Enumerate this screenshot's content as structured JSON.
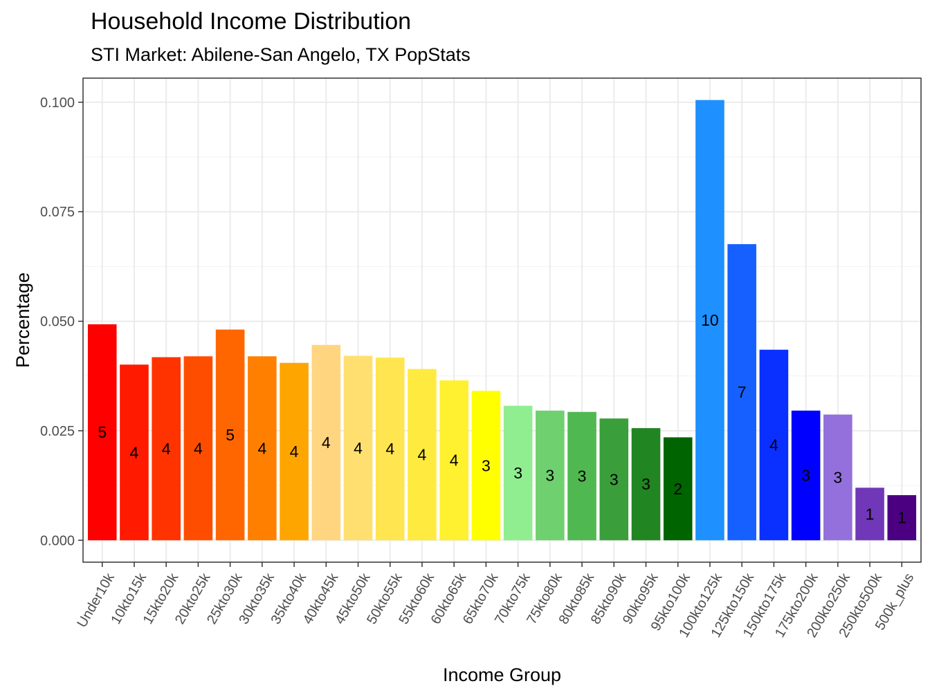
{
  "chart_data": {
    "type": "bar",
    "title": "Household Income Distribution",
    "subtitle": "STI Market: Abilene-San Angelo, TX PopStats",
    "xlabel": "Income Group",
    "ylabel": "Percentage",
    "ylim": [
      -0.005,
      0.1055
    ],
    "yticks": [
      "0.000",
      "0.025",
      "0.050",
      "0.075",
      "0.100"
    ],
    "ytick_values": [
      0,
      0.025,
      0.05,
      0.075,
      0.1
    ],
    "grid": true,
    "legend": "none",
    "categories": [
      "Under10k",
      "10kto15k",
      "15kto20k",
      "20kto25k",
      "25kto30k",
      "30kto35k",
      "35kto40k",
      "40kto45k",
      "45kto50k",
      "50kto55k",
      "55kto60k",
      "60kto65k",
      "65kto70k",
      "70kto75k",
      "75kto80k",
      "80kto85k",
      "85kto90k",
      "90kto95k",
      "95kto100k",
      "100kto125k",
      "125kto150k",
      "150kto175k",
      "175kto200k",
      "200kto250k",
      "250kto500k",
      "500k_plus"
    ],
    "values": [
      0.0493,
      0.0401,
      0.0418,
      0.042,
      0.0481,
      0.042,
      0.0405,
      0.0446,
      0.0421,
      0.0417,
      0.0391,
      0.0365,
      0.0341,
      0.0307,
      0.0296,
      0.0293,
      0.0278,
      0.0256,
      0.0235,
      0.1005,
      0.0676,
      0.0435,
      0.0296,
      0.0287,
      0.012,
      0.0103
    ],
    "labels": [
      "5",
      "4",
      "4",
      "4",
      "5",
      "4",
      "4",
      "4",
      "4",
      "4",
      "4",
      "4",
      "3",
      "3",
      "3",
      "3",
      "3",
      "3",
      "2",
      "10",
      "7",
      "4",
      "3",
      "3",
      "1",
      "1"
    ],
    "colors": [
      "#FF0000",
      "#FF1A00",
      "#FF3300",
      "#FF4D00",
      "#FF6600",
      "#FF8000",
      "#FFA500",
      "#FFD580",
      "#FFDF70",
      "#FFE550",
      "#FFEA40",
      "#FFF030",
      "#FFFF00",
      "#90EE90",
      "#6FD06F",
      "#50B850",
      "#3A9F3A",
      "#218521",
      "#006400",
      "#1E90FF",
      "#1560FF",
      "#0A30FF",
      "#0000FF",
      "#9370DB",
      "#7038B8",
      "#4B0082"
    ]
  }
}
